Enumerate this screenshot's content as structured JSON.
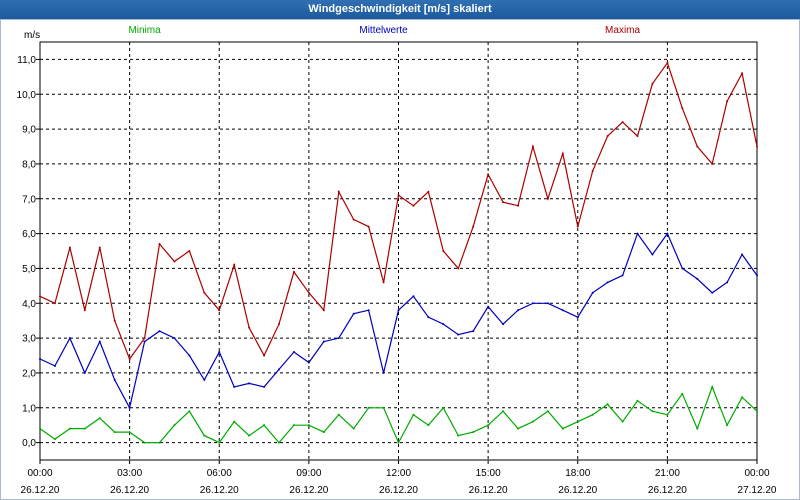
{
  "window": {
    "title": "Windgeschwindigkeit [m/s] skaliert"
  },
  "chart_data": {
    "type": "line",
    "title": "Windgeschwindigkeit [m/s] skaliert",
    "ylabel": "m/s",
    "ylim": [
      -0.5,
      11.5
    ],
    "xlim": [
      0,
      24
    ],
    "grid": true,
    "y_ticks": [
      "0,0",
      "1,0",
      "2,0",
      "3,0",
      "4,0",
      "5,0",
      "6,0",
      "7,0",
      "8,0",
      "9,0",
      "10,0",
      "11,0"
    ],
    "x_ticks": [
      {
        "time": "00:00",
        "date": "26.12.20"
      },
      {
        "time": "03:00",
        "date": "26.12.20"
      },
      {
        "time": "06:00",
        "date": "26.12.20"
      },
      {
        "time": "09:00",
        "date": "26.12.20"
      },
      {
        "time": "12:00",
        "date": "26.12.20"
      },
      {
        "time": "15:00",
        "date": "26.12.20"
      },
      {
        "time": "18:00",
        "date": "26.12.20"
      },
      {
        "time": "21:00",
        "date": "26.12.20"
      },
      {
        "time": "00:00",
        "date": "27.12.20"
      }
    ],
    "series": [
      {
        "name": "Minima",
        "color": "#00aa00",
        "x": [
          0,
          0.5,
          1,
          1.5,
          2,
          2.5,
          3,
          3.5,
          4,
          4.5,
          5,
          5.5,
          6,
          6.5,
          7,
          7.5,
          8,
          8.5,
          9,
          9.5,
          10,
          10.5,
          11,
          11.5,
          12,
          12.5,
          13,
          13.5,
          14,
          14.5,
          15,
          15.5,
          16,
          16.5,
          17,
          17.5,
          18,
          18.5,
          19,
          19.5,
          20,
          20.5,
          21,
          21.5,
          22,
          22.5,
          23,
          23.5,
          24
        ],
        "values": [
          0.4,
          0.1,
          0.4,
          0.4,
          0.7,
          0.3,
          0.3,
          0.0,
          0.0,
          0.5,
          0.9,
          0.2,
          0.0,
          0.6,
          0.2,
          0.5,
          0.0,
          0.5,
          0.5,
          0.3,
          0.8,
          0.4,
          1.0,
          1.0,
          0.0,
          0.8,
          0.5,
          1.0,
          0.2,
          0.3,
          0.5,
          0.9,
          0.4,
          0.6,
          0.9,
          0.4,
          0.6,
          0.8,
          1.1,
          0.6,
          1.2,
          0.9,
          0.8,
          1.4,
          0.4,
          1.6,
          0.5,
          1.3,
          0.9
        ]
      },
      {
        "name": "Mittelwerte",
        "color": "#0000bb",
        "x": [
          0,
          0.5,
          1,
          1.5,
          2,
          2.5,
          3,
          3.5,
          4,
          4.5,
          5,
          5.5,
          6,
          6.5,
          7,
          7.5,
          8,
          8.5,
          9,
          9.5,
          10,
          10.5,
          11,
          11.5,
          12,
          12.5,
          13,
          13.5,
          14,
          14.5,
          15,
          15.5,
          16,
          16.5,
          17,
          17.5,
          18,
          18.5,
          19,
          19.5,
          20,
          20.5,
          21,
          21.5,
          22,
          22.5,
          23,
          23.5,
          24
        ],
        "values": [
          2.4,
          2.2,
          3.0,
          2.0,
          2.9,
          1.8,
          1.0,
          2.9,
          3.2,
          3.0,
          2.5,
          1.8,
          2.6,
          1.6,
          1.7,
          1.6,
          2.1,
          2.6,
          2.3,
          2.9,
          3.0,
          3.7,
          3.8,
          2.0,
          3.8,
          4.2,
          3.6,
          3.4,
          3.1,
          3.2,
          3.9,
          3.4,
          3.8,
          4.0,
          4.0,
          3.8,
          3.6,
          4.3,
          4.6,
          4.8,
          6.0,
          5.4,
          6.0,
          5.0,
          4.7,
          4.3,
          4.6,
          5.4,
          4.8
        ]
      },
      {
        "name": "Maxima",
        "color": "#aa0000",
        "x": [
          0,
          0.5,
          1,
          1.5,
          2,
          2.5,
          3,
          3.5,
          4,
          4.5,
          5,
          5.5,
          6,
          6.5,
          7,
          7.5,
          8,
          8.5,
          9,
          9.5,
          10,
          10.5,
          11,
          11.5,
          12,
          12.5,
          13,
          13.5,
          14,
          14.5,
          15,
          15.5,
          16,
          16.5,
          17,
          17.5,
          18,
          18.5,
          19,
          19.5,
          20,
          20.5,
          21,
          21.5,
          22,
          22.5,
          23,
          23.5,
          24
        ],
        "values": [
          4.2,
          4.0,
          5.6,
          3.8,
          5.6,
          3.5,
          2.4,
          3.0,
          5.7,
          5.2,
          5.5,
          4.3,
          3.8,
          5.1,
          3.3,
          2.5,
          3.4,
          4.9,
          4.3,
          3.8,
          7.2,
          6.4,
          6.2,
          4.6,
          7.1,
          6.8,
          7.2,
          5.5,
          5.0,
          6.2,
          7.7,
          6.9,
          6.8,
          8.5,
          7.0,
          8.3,
          6.2,
          7.8,
          8.8,
          9.2,
          8.8,
          10.3,
          10.9,
          9.6,
          8.5,
          8.0,
          9.8,
          10.6,
          8.5
        ]
      }
    ]
  }
}
